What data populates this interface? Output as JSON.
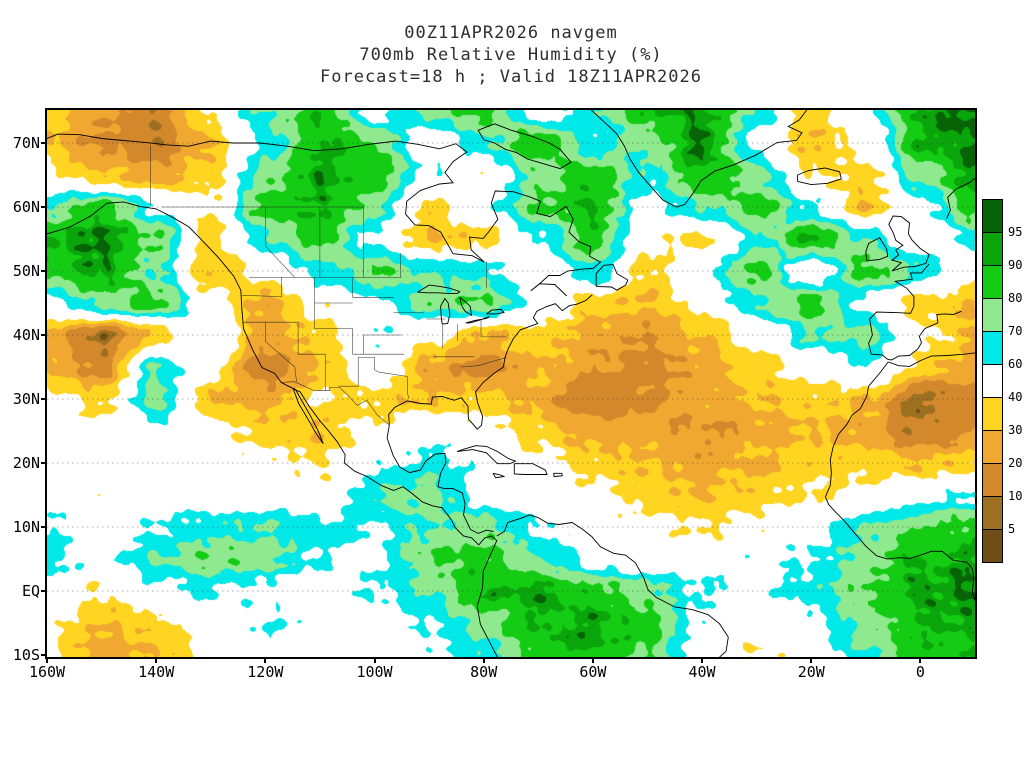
{
  "title": {
    "line1": "00Z11APR2026 navgem",
    "line2": "700mb Relative Humidity (%)",
    "line3": "Forecast=18 h ; Valid 18Z11APR2026"
  },
  "axes": {
    "lat_ticks": [
      {
        "lat": 70,
        "label": "70N"
      },
      {
        "lat": 60,
        "label": "60N"
      },
      {
        "lat": 50,
        "label": "50N"
      },
      {
        "lat": 40,
        "label": "40N"
      },
      {
        "lat": 30,
        "label": "30N"
      },
      {
        "lat": 20,
        "label": "20N"
      },
      {
        "lat": 10,
        "label": "10N"
      },
      {
        "lat": 0,
        "label": "EQ"
      },
      {
        "lat": -10,
        "label": "10S"
      }
    ],
    "lon_ticks": [
      {
        "lon": -160,
        "label": "160W"
      },
      {
        "lon": -140,
        "label": "140W"
      },
      {
        "lon": -120,
        "label": "120W"
      },
      {
        "lon": -100,
        "label": "100W"
      },
      {
        "lon": -80,
        "label": "80W"
      },
      {
        "lon": -60,
        "label": "60W"
      },
      {
        "lon": -40,
        "label": "40W"
      },
      {
        "lon": -20,
        "label": "20W"
      },
      {
        "lon": 0,
        "label": "0"
      }
    ]
  },
  "colorbar": {
    "tick_labels": [
      "95",
      "90",
      "80",
      "70",
      "60",
      "40",
      "30",
      "20",
      "10",
      "5"
    ],
    "segment_colors_top_to_bottom": [
      "#066306",
      "#0AA50A",
      "#14CC14",
      "#8FE98F",
      "#00E8E8",
      "#FFFFFF",
      "#FFD521",
      "#F0A830",
      "#D2882B",
      "#9C7020",
      "#6E4E14"
    ]
  },
  "chart_data": {
    "type": "heatmap",
    "title": "00Z11APR2026 navgem 700mb Relative Humidity (%) Forecast=18 h ; Valid 18Z11APR2026",
    "field_name": "700mb Relative Humidity",
    "units": "%",
    "model": "navgem",
    "init_time": "00Z11APR2026",
    "forecast_hours": 18,
    "valid_time": "18Z11APR2026",
    "lon_range": [
      -160,
      10
    ],
    "lat_range": [
      -10,
      75
    ],
    "levels": {
      "thresholds": [
        95,
        90,
        80,
        70,
        60,
        40,
        30,
        20,
        10,
        5
      ],
      "colors": [
        "#066306",
        "#0AA50A",
        "#14CC14",
        "#8FE98F",
        "#00E8E8",
        "#FFFFFF",
        "#FFD521",
        "#F0A830",
        "#D2882B",
        "#9C7020",
        "#6E4E14"
      ]
    },
    "grid_lons": [
      -160,
      -150,
      -140,
      -130,
      -120,
      -110,
      -100,
      -90,
      -80,
      -70,
      -60,
      -50,
      -40,
      -30,
      -20,
      -10,
      0,
      10
    ],
    "grid_lats": [
      75,
      70,
      65,
      60,
      55,
      50,
      45,
      40,
      35,
      30,
      25,
      20,
      15,
      10,
      5,
      0,
      -5,
      -10
    ],
    "rh_values": [
      [
        35,
        22,
        12,
        45,
        72,
        88,
        55,
        75,
        85,
        55,
        65,
        88,
        93,
        70,
        35,
        55,
        93,
        97
      ],
      [
        30,
        18,
        12,
        30,
        62,
        90,
        82,
        45,
        68,
        88,
        62,
        75,
        96,
        55,
        30,
        45,
        90,
        97
      ],
      [
        45,
        30,
        25,
        35,
        75,
        93,
        85,
        60,
        45,
        75,
        86,
        65,
        90,
        75,
        40,
        35,
        75,
        93
      ],
      [
        70,
        86,
        60,
        42,
        85,
        90,
        75,
        35,
        55,
        80,
        90,
        55,
        70,
        85,
        60,
        30,
        55,
        86
      ],
      [
        90,
        96,
        80,
        35,
        68,
        85,
        55,
        30,
        35,
        60,
        85,
        45,
        35,
        65,
        91,
        70,
        45,
        65
      ],
      [
        85,
        93,
        70,
        30,
        45,
        65,
        80,
        70,
        65,
        45,
        70,
        35,
        55,
        85,
        45,
        85,
        70,
        45
      ],
      [
        55,
        75,
        85,
        45,
        25,
        45,
        55,
        75,
        80,
        55,
        35,
        30,
        45,
        70,
        86,
        55,
        35,
        30
      ],
      [
        25,
        8,
        30,
        55,
        25,
        35,
        60,
        45,
        30,
        35,
        25,
        20,
        30,
        45,
        70,
        75,
        45,
        30
      ],
      [
        30,
        15,
        70,
        45,
        12,
        30,
        55,
        25,
        15,
        30,
        22,
        15,
        25,
        35,
        45,
        60,
        35,
        25
      ],
      [
        45,
        35,
        75,
        30,
        25,
        40,
        35,
        30,
        35,
        25,
        12,
        18,
        25,
        30,
        35,
        30,
        8,
        15
      ],
      [
        55,
        45,
        55,
        45,
        35,
        30,
        45,
        55,
        45,
        35,
        25,
        25,
        20,
        25,
        30,
        25,
        10,
        20
      ],
      [
        50,
        55,
        45,
        50,
        45,
        40,
        55,
        65,
        55,
        45,
        35,
        30,
        25,
        30,
        35,
        35,
        30,
        35
      ],
      [
        55,
        45,
        50,
        55,
        50,
        45,
        70,
        75,
        55,
        50,
        45,
        35,
        30,
        35,
        40,
        45,
        55,
        60
      ],
      [
        60,
        50,
        60,
        65,
        70,
        65,
        60,
        70,
        75,
        60,
        50,
        45,
        40,
        45,
        55,
        70,
        80,
        85
      ],
      [
        65,
        55,
        70,
        80,
        75,
        60,
        55,
        80,
        85,
        70,
        55,
        50,
        50,
        55,
        60,
        75,
        90,
        92
      ],
      [
        55,
        40,
        55,
        60,
        55,
        50,
        60,
        70,
        90,
        92,
        85,
        75,
        60,
        55,
        65,
        80,
        92,
        95
      ],
      [
        45,
        30,
        35,
        50,
        60,
        55,
        50,
        60,
        75,
        90,
        92,
        85,
        55,
        45,
        55,
        75,
        90,
        92
      ],
      [
        40,
        25,
        30,
        45,
        55,
        50,
        45,
        55,
        65,
        85,
        90,
        80,
        50,
        40,
        50,
        70,
        85,
        88
      ]
    ]
  }
}
